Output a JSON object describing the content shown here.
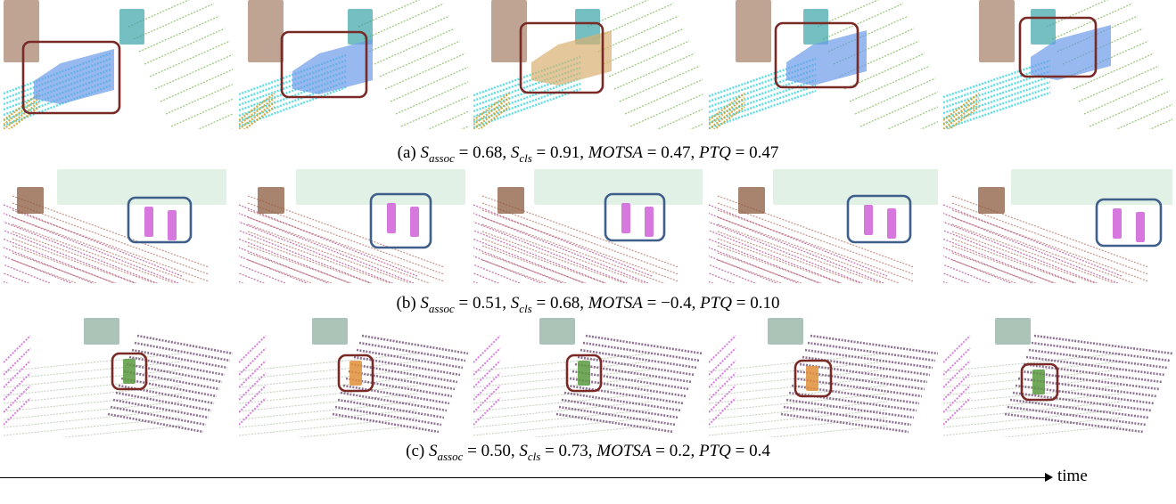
{
  "figure": {
    "rows": [
      {
        "id": "a",
        "caption": {
          "prefix": "(a)",
          "s_assoc": "0.68",
          "s_cls": "0.91",
          "motsa": "0.47",
          "ptq": "0.47"
        },
        "box_color": "#7a2a26",
        "frames": 5
      },
      {
        "id": "b",
        "caption": {
          "prefix": "(b)",
          "s_assoc": "0.51",
          "s_cls": "0.68",
          "motsa": "−0.4",
          "ptq": "0.10"
        },
        "box_color": "#3e5f8c",
        "frames": 5
      },
      {
        "id": "c",
        "caption": {
          "prefix": "(c)",
          "s_assoc": "0.50",
          "s_cls": "0.73",
          "motsa": "0.2",
          "ptq": "0.4"
        },
        "box_color": "#7a2a26",
        "frames": 5
      }
    ],
    "symbols": {
      "s": "S",
      "assoc_sub": "assoc",
      "cls_sub": "cls",
      "motsa": "MOTSA",
      "ptq": "PTQ"
    },
    "time_axis": {
      "label": "time"
    },
    "palette": {
      "ground_green": "#8cc06a",
      "sidewalk_cyan": "#3fd8e0",
      "vegetation_brown": "#8b5a3c",
      "car_blue": "#6b9be8",
      "pole_teal": "#3aa3a8",
      "person_magenta": "#d060d8",
      "building_purple": "#7a5a80",
      "road_pink": "#c060a0",
      "terrain_yellow": "#c8a030",
      "person_orange": "#e0903a"
    }
  }
}
